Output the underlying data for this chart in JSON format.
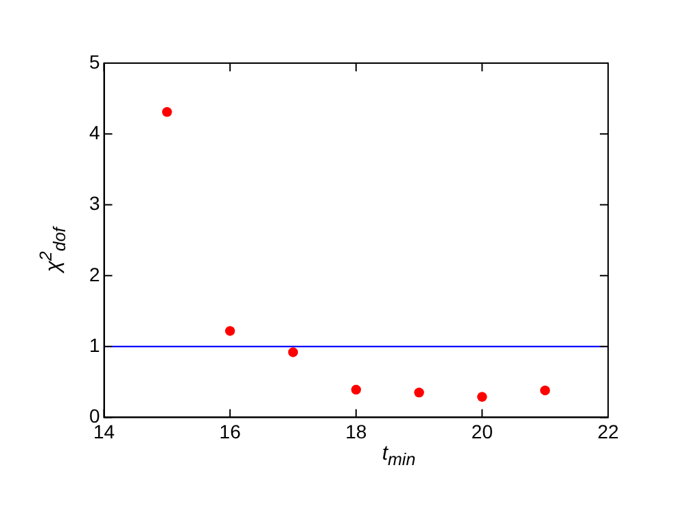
{
  "chart_data": {
    "type": "scatter",
    "xlabel": "t$_{min}$",
    "ylabel": "χ$^{2}$$_{dof}$",
    "x": [
      15,
      16,
      17,
      18,
      19,
      20,
      21
    ],
    "series": [
      {
        "color": "#ff0000",
        "values": [
          4.31,
          1.22,
          0.92,
          0.39,
          0.35,
          0.29,
          0.38
        ]
      }
    ],
    "xlim": [
      14,
      22
    ],
    "xticks": [
      14,
      16,
      18,
      20,
      22
    ],
    "ylim": [
      0,
      5
    ],
    "yticks": [
      0,
      1,
      2,
      3,
      4,
      5
    ],
    "ref_lines": [
      {
        "axis": "y",
        "value": 1,
        "color": "#0000ff"
      }
    ],
    "marker": "circle",
    "grid": false,
    "legend": false
  }
}
